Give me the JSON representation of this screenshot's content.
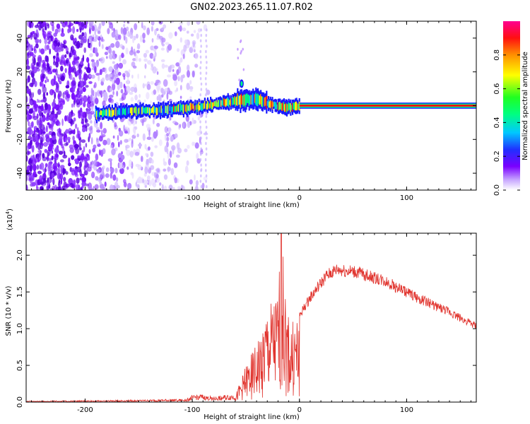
{
  "title": "GN02.2023.265.11.07.R02",
  "chart_data": [
    {
      "type": "heatmap",
      "xlabel": "Height of straight line (km)",
      "ylabel": "Frequency (Hz)",
      "xlim": [
        -255,
        165
      ],
      "ylim": [
        -50,
        50
      ],
      "x_ticks": [
        -200,
        -100,
        0,
        100
      ],
      "y_ticks": [
        -40,
        -20,
        0,
        20,
        40
      ],
      "grid": false,
      "colorbar": {
        "label": "Normalized spectral amplitude",
        "range": [
          0,
          1
        ],
        "ticks": [
          "0.0",
          "0.2",
          "0.4",
          "0.6",
          "0.8"
        ],
        "colors": [
          "#ffffff",
          "#7a00ff",
          "#0030ff",
          "#00ccff",
          "#00ff40",
          "#ffff00",
          "#ff8000",
          "#ff0000",
          "#ff0090"
        ]
      },
      "noise_region_km": [
        -255,
        -85
      ],
      "ridge_freq_hz": [
        {
          "x": -190,
          "f": -5
        },
        {
          "x": -170,
          "f": -4
        },
        {
          "x": -150,
          "f": -3
        },
        {
          "x": -130,
          "f": -3
        },
        {
          "x": -115,
          "f": -2
        },
        {
          "x": -100,
          "f": -1
        },
        {
          "x": -85,
          "f": 0
        },
        {
          "x": -70,
          "f": 2
        },
        {
          "x": -55,
          "f": 3
        },
        {
          "x": -45,
          "f": 4
        },
        {
          "x": -35,
          "f": 3
        },
        {
          "x": -28,
          "f": 1
        },
        {
          "x": -15,
          "f": -1
        },
        {
          "x": 0,
          "f": 0
        },
        {
          "x": 165,
          "f": 0
        }
      ]
    },
    {
      "type": "line",
      "xlabel": "Height of straight line (km)",
      "ylabel": "SNR (10 * v/v)",
      "y_multiplier": "(x10",
      "y_multiplier_exp": "4",
      "y_multiplier_close": ")",
      "xlim": [
        -255,
        165
      ],
      "ylim": [
        0,
        2.3
      ],
      "x_ticks": [
        -200,
        -100,
        0,
        100
      ],
      "y_ticks": [
        "0.0",
        "0.5",
        "1.0",
        "1.5",
        "2.0"
      ],
      "grid": false,
      "color": "#e0302a",
      "envelope": [
        {
          "x": -255,
          "y": 0.01
        },
        {
          "x": -150,
          "y": 0.02
        },
        {
          "x": -105,
          "y": 0.03
        },
        {
          "x": -95,
          "y": 0.1
        },
        {
          "x": -80,
          "y": 0.05
        },
        {
          "x": -60,
          "y": 0.08
        },
        {
          "x": -50,
          "y": 0.5
        },
        {
          "x": -40,
          "y": 0.8
        },
        {
          "x": -30,
          "y": 1.3
        },
        {
          "x": -20,
          "y": 1.5
        },
        {
          "x": -17,
          "y": 2.3
        },
        {
          "x": -10,
          "y": 1.1
        },
        {
          "x": 0,
          "y": 1.2
        },
        {
          "x": 10,
          "y": 1.45
        },
        {
          "x": 25,
          "y": 1.75
        },
        {
          "x": 35,
          "y": 1.84
        },
        {
          "x": 55,
          "y": 1.8
        },
        {
          "x": 80,
          "y": 1.68
        },
        {
          "x": 110,
          "y": 1.45
        },
        {
          "x": 140,
          "y": 1.25
        },
        {
          "x": 165,
          "y": 1.05
        }
      ]
    }
  ]
}
